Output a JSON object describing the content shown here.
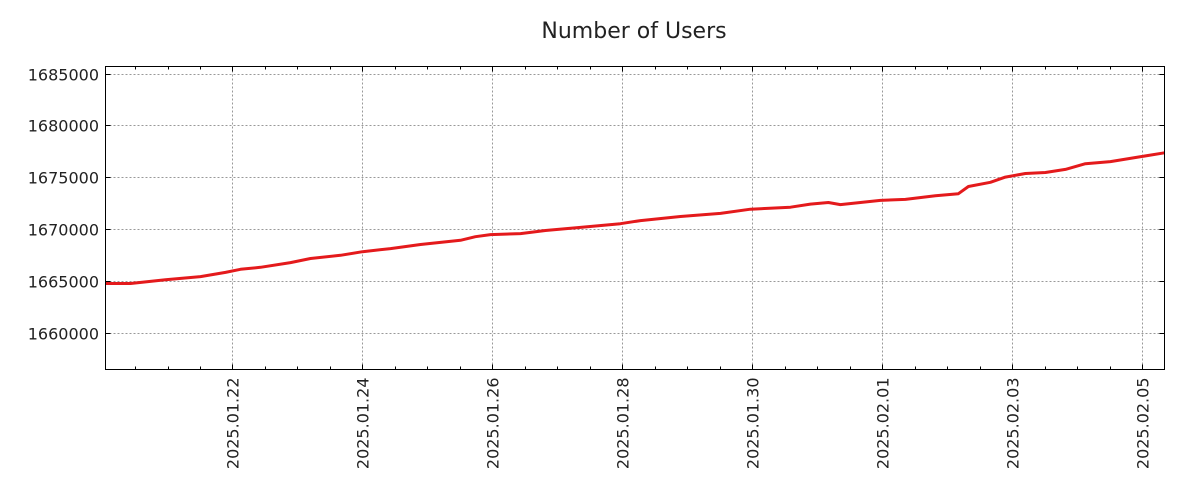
{
  "chart_data": {
    "type": "line",
    "title": "Number of Users",
    "xlabel": "",
    "ylabel": "",
    "x_unit": "days since 2025.01.22",
    "xlim": [
      -1.954,
      14.34
    ],
    "ylim": [
      1656430,
      1685680
    ],
    "grid": true,
    "x_ticks": [
      {
        "value": 0,
        "label": "2025.01.22"
      },
      {
        "value": 2,
        "label": "2025.01.24"
      },
      {
        "value": 4,
        "label": "2025.01.26"
      },
      {
        "value": 6,
        "label": "2025.01.28"
      },
      {
        "value": 8,
        "label": "2025.01.30"
      },
      {
        "value": 10,
        "label": "2025.02.01"
      },
      {
        "value": 12,
        "label": "2025.02.03"
      },
      {
        "value": 14,
        "label": "2025.02.05"
      }
    ],
    "y_ticks": [
      {
        "value": 1660000,
        "label": "1660000"
      },
      {
        "value": 1665000,
        "label": "1665000"
      },
      {
        "value": 1670000,
        "label": "1670000"
      },
      {
        "value": 1675000,
        "label": "1675000"
      },
      {
        "value": 1680000,
        "label": "1680000"
      },
      {
        "value": 1685000,
        "label": "1685000"
      }
    ],
    "series": [
      {
        "name": "Number of Users",
        "color": "#e41a1c",
        "x": [
          -1.954,
          -1.569,
          -1.031,
          -0.492,
          -0.108,
          0.123,
          0.431,
          0.892,
          1.2,
          1.662,
          2.0,
          2.431,
          2.892,
          3.2,
          3.508,
          3.738,
          3.969,
          4.431,
          4.815,
          5.354,
          5.969,
          6.277,
          6.892,
          7.508,
          7.969,
          8.585,
          8.892,
          9.169,
          9.354,
          9.969,
          10.354,
          10.815,
          11.169,
          11.323,
          11.662,
          11.892,
          12.2,
          12.508,
          12.815,
          13.123,
          13.508,
          13.954,
          14.34
        ],
        "y": [
          1664730,
          1664730,
          1665100,
          1665400,
          1665800,
          1666100,
          1666300,
          1666750,
          1667150,
          1667450,
          1667800,
          1668100,
          1668500,
          1668700,
          1668900,
          1669250,
          1669450,
          1669550,
          1669850,
          1670150,
          1670500,
          1670800,
          1671200,
          1671500,
          1671900,
          1672100,
          1672400,
          1672550,
          1672350,
          1672750,
          1672850,
          1673200,
          1673400,
          1674100,
          1674500,
          1675000,
          1675350,
          1675450,
          1675750,
          1676300,
          1676500,
          1676950,
          1677350
        ]
      }
    ]
  }
}
